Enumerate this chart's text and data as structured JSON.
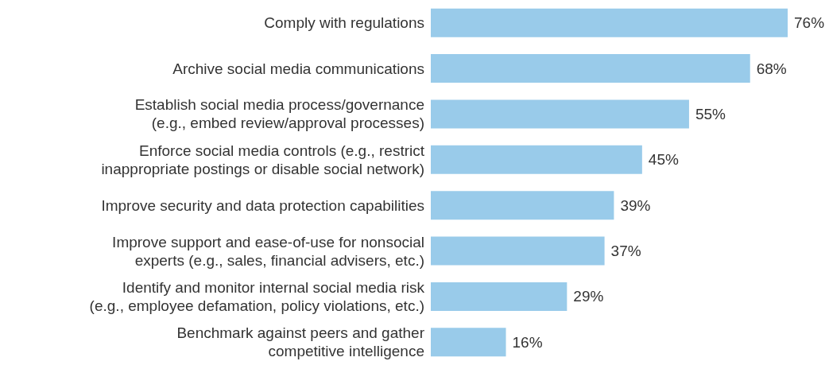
{
  "chart_data": {
    "type": "bar",
    "orientation": "horizontal",
    "categories": [
      "Comply with regulations",
      "Archive social media communications",
      "Establish social media process/governance\n(e.g., embed review/approval processes)",
      "Enforce social media controls (e.g., restrict\ninappropriate postings or disable social network)",
      "Improve security and data protection capabilities",
      "Improve support and ease-of-use for nonsocial\nexperts (e.g., sales, financial advisers, etc.)",
      "Identify and monitor internal social media risk\n(e.g., employee defamation, policy violations, etc.)",
      "Benchmark against peers and gather\ncompetitive intelligence"
    ],
    "values": [
      76,
      68,
      55,
      45,
      39,
      37,
      29,
      16
    ],
    "value_labels": [
      "76%",
      "68%",
      "55%",
      "45%",
      "39%",
      "37%",
      "29%",
      "16%"
    ],
    "color": "#99cbea"
  }
}
